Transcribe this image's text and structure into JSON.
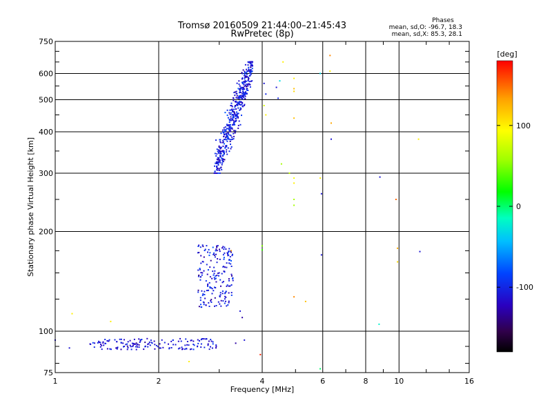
{
  "chart_data": {
    "type": "scatter",
    "title": "Tromsø 20160509 21:44:00–21:45:43",
    "subtitle": "RwPretec (8p)",
    "xlabel": "Frequency [MHz]",
    "ylabel": "Stationary phase Virtual Height [km]",
    "x_scale": "log",
    "y_scale": "log",
    "xlim": [
      1,
      16
    ],
    "ylim": [
      75,
      750
    ],
    "x_ticks": [
      1,
      2,
      4,
      6,
      8,
      10,
      16
    ],
    "x_tick_labels": [
      "1",
      "2",
      "4",
      "6",
      "8",
      "10",
      "16"
    ],
    "y_ticks": [
      75,
      100,
      200,
      300,
      400,
      500,
      600,
      750
    ],
    "y_tick_labels": [
      "75",
      "100",
      "200",
      "300",
      "400",
      "500",
      "600",
      "750"
    ],
    "grid": true,
    "phase_info": {
      "heading": "Phases",
      "line1": "mean, sd,O: -96.7, 18.3",
      "line2": "mean, sd,X:  85.3, 28.1"
    },
    "colorbar": {
      "label": "[deg]",
      "range": [
        -180,
        180
      ],
      "ticks": [
        -100,
        0,
        100
      ],
      "tick_labels": [
        "-100",
        "0",
        "100"
      ]
    },
    "clusters": [
      {
        "fmin": 1.25,
        "fmax": 2.95,
        "hmin": 88,
        "hmax": 95,
        "phase_mean": -110,
        "phase_sd": 12,
        "count": 160
      },
      {
        "fmin": 2.6,
        "fmax": 3.3,
        "hmin": 118,
        "hmax": 182,
        "phase_mean": -105,
        "phase_sd": 15,
        "count": 190
      },
      {
        "fmin": 2.9,
        "fmax": 3.75,
        "hmin": 300,
        "hmax": 650,
        "phase_mean": -105,
        "phase_sd": 15,
        "count": 500
      }
    ],
    "points": [
      {
        "x": 1.0,
        "y": 94,
        "phase": -110
      },
      {
        "x": 1.1,
        "y": 89,
        "phase": -110
      },
      {
        "x": 1.12,
        "y": 113,
        "phase": 100
      },
      {
        "x": 1.45,
        "y": 107,
        "phase": 100
      },
      {
        "x": 2.45,
        "y": 81,
        "phase": 100
      },
      {
        "x": 3.0,
        "y": 150,
        "phase": -110
      },
      {
        "x": 3.25,
        "y": 175,
        "phase": 140
      },
      {
        "x": 3.45,
        "y": 115,
        "phase": -110
      },
      {
        "x": 3.5,
        "y": 110,
        "phase": -130
      },
      {
        "x": 3.55,
        "y": 94,
        "phase": -110
      },
      {
        "x": 3.35,
        "y": 92,
        "phase": -130
      },
      {
        "x": 4.0,
        "y": 176,
        "phase": 30
      },
      {
        "x": 4.0,
        "y": 181,
        "phase": 50
      },
      {
        "x": 3.95,
        "y": 85,
        "phase": 170
      },
      {
        "x": 4.05,
        "y": 560,
        "phase": -110
      },
      {
        "x": 4.1,
        "y": 520,
        "phase": -100
      },
      {
        "x": 4.05,
        "y": 480,
        "phase": 80
      },
      {
        "x": 4.1,
        "y": 450,
        "phase": 100
      },
      {
        "x": 4.4,
        "y": 545,
        "phase": -110
      },
      {
        "x": 4.45,
        "y": 505,
        "phase": -100
      },
      {
        "x": 4.5,
        "y": 570,
        "phase": -30
      },
      {
        "x": 4.6,
        "y": 650,
        "phase": 100
      },
      {
        "x": 4.55,
        "y": 320,
        "phase": 60
      },
      {
        "x": 4.8,
        "y": 300,
        "phase": 70
      },
      {
        "x": 4.95,
        "y": 290,
        "phase": 90
      },
      {
        "x": 4.95,
        "y": 280,
        "phase": 100
      },
      {
        "x": 4.95,
        "y": 250,
        "phase": 60
      },
      {
        "x": 4.95,
        "y": 240,
        "phase": 60
      },
      {
        "x": 4.95,
        "y": 580,
        "phase": 100
      },
      {
        "x": 4.95,
        "y": 540,
        "phase": 120
      },
      {
        "x": 4.95,
        "y": 530,
        "phase": 110
      },
      {
        "x": 4.95,
        "y": 440,
        "phase": 120
      },
      {
        "x": 4.95,
        "y": 127,
        "phase": 140
      },
      {
        "x": 5.35,
        "y": 123,
        "phase": 120
      },
      {
        "x": 5.9,
        "y": 290,
        "phase": 100
      },
      {
        "x": 5.95,
        "y": 260,
        "phase": -110
      },
      {
        "x": 5.95,
        "y": 170,
        "phase": -110
      },
      {
        "x": 5.9,
        "y": 600,
        "phase": -30
      },
      {
        "x": 5.9,
        "y": 77,
        "phase": 0
      },
      {
        "x": 6.3,
        "y": 680,
        "phase": 140
      },
      {
        "x": 6.3,
        "y": 610,
        "phase": 100
      },
      {
        "x": 6.35,
        "y": 425,
        "phase": 130
      },
      {
        "x": 6.35,
        "y": 380,
        "phase": -110
      },
      {
        "x": 8.8,
        "y": 292,
        "phase": -110
      },
      {
        "x": 8.75,
        "y": 105,
        "phase": -20
      },
      {
        "x": 9.8,
        "y": 250,
        "phase": 150
      },
      {
        "x": 9.9,
        "y": 178,
        "phase": 130
      },
      {
        "x": 9.9,
        "y": 162,
        "phase": 110
      },
      {
        "x": 11.4,
        "y": 380,
        "phase": 100
      },
      {
        "x": 11.5,
        "y": 174,
        "phase": -110
      }
    ]
  }
}
